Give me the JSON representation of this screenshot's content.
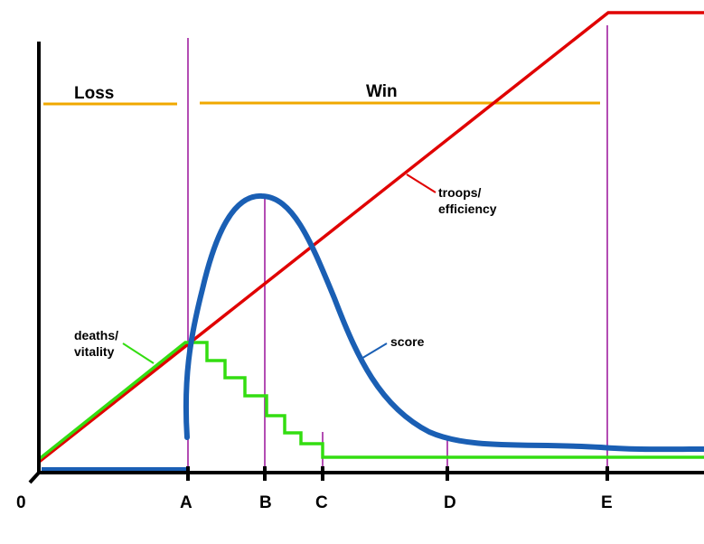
{
  "colors": {
    "axis": "#000000",
    "troops_line": "#e00000",
    "score_curve": "#1a5fb4",
    "deaths_line": "#33dd11",
    "outcome_bars": "#f0a800",
    "markers": "#a020a0"
  },
  "origin_label": "0",
  "phase_labels": {
    "loss": "Loss",
    "win": "Win"
  },
  "x_ticks": [
    "A",
    "B",
    "C",
    "D",
    "E"
  ],
  "curve_labels": {
    "troops": [
      "troops/",
      "efficiency"
    ],
    "deaths": [
      "deaths/",
      "vitality"
    ],
    "score": "score"
  }
}
